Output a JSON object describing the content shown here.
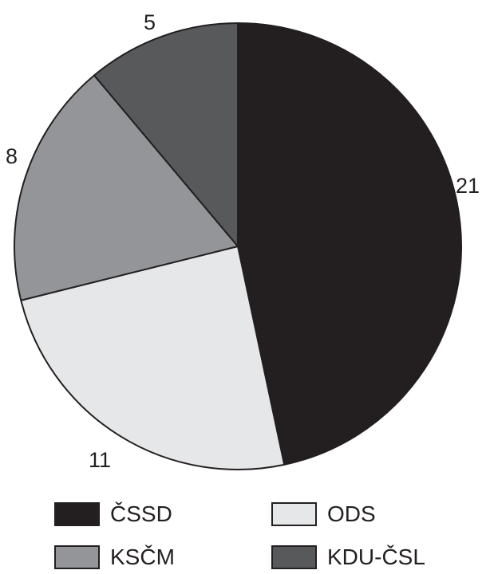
{
  "chart_data": {
    "type": "pie",
    "slices": [
      {
        "label": "ČSSD",
        "value": 21,
        "value_label": "21",
        "color": "#231f20"
      },
      {
        "label": "ODS",
        "value": 11,
        "value_label": "11",
        "color": "#e6e7e8"
      },
      {
        "label": "KSČM",
        "value": 8,
        "value_label": "8",
        "color": "#939598"
      },
      {
        "label": "KDU-ČSL",
        "value": 5,
        "value_label": "5",
        "color": "#58595b"
      }
    ],
    "start": "12 o'clock, clockwise",
    "legend_position": "bottom",
    "legend": [
      {
        "label": "ČSSD",
        "color": "#231f20"
      },
      {
        "label": "ODS",
        "color": "#e6e7e8"
      },
      {
        "label": "KSČM",
        "color": "#939598"
      },
      {
        "label": "KDU-ČSL",
        "color": "#58595b"
      }
    ]
  }
}
